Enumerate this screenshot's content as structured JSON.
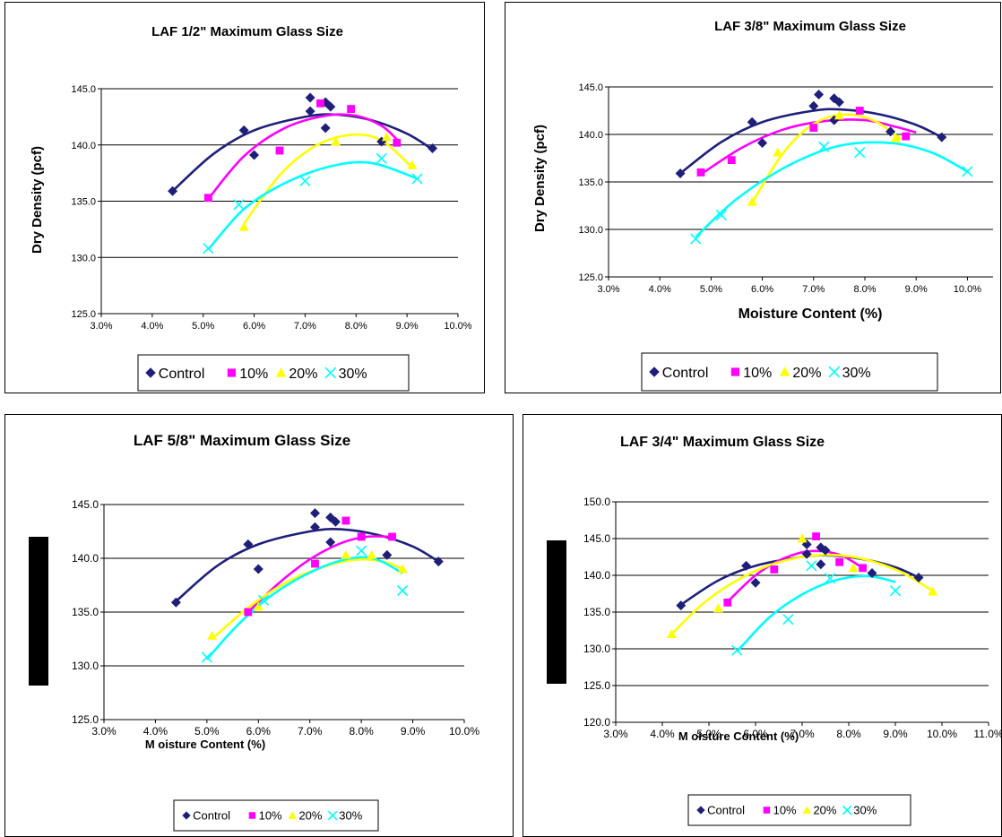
{
  "chart_data": [
    {
      "type": "scatter",
      "title": "LAF 1/2\" Maximum Glass Size",
      "xlabel": "",
      "ylabel": "Dry Density (pcf)",
      "xlim": [
        3.0,
        10.0
      ],
      "ylim": [
        125.0,
        145.0
      ],
      "xticks": [
        "3.0%",
        "4.0%",
        "5.0%",
        "6.0%",
        "7.0%",
        "8.0%",
        "9.0%",
        "10.0%"
      ],
      "yticks": [
        "125.0",
        "130.0",
        "135.0",
        "140.0",
        "145.0"
      ],
      "grid": "horizontal",
      "legend": "bottom",
      "series": [
        {
          "name": "Control",
          "color": "#1f1f7a",
          "marker": "diamond",
          "points": [
            [
              4.4,
              135.9
            ],
            [
              5.8,
              141.3
            ],
            [
              6.0,
              139.1
            ],
            [
              7.1,
              144.2
            ],
            [
              7.1,
              143.0
            ],
            [
              7.4,
              143.8
            ],
            [
              7.5,
              143.4
            ],
            [
              7.4,
              141.5
            ],
            [
              8.5,
              140.3
            ],
            [
              9.5,
              139.7
            ]
          ],
          "fit": [
            [
              4.4,
              135.9
            ],
            [
              5.2,
              139.2
            ],
            [
              6.0,
              141.3
            ],
            [
              7.0,
              142.5
            ],
            [
              7.6,
              142.7
            ],
            [
              8.3,
              142.2
            ],
            [
              9.0,
              141.0
            ],
            [
              9.5,
              139.6
            ]
          ]
        },
        {
          "name": "10%",
          "color": "#ff00ff",
          "marker": "square",
          "points": [
            [
              5.1,
              135.3
            ],
            [
              6.5,
              139.5
            ],
            [
              7.3,
              143.7
            ],
            [
              7.9,
              143.2
            ],
            [
              8.8,
              140.2
            ]
          ],
          "fit": [
            [
              5.1,
              135.2
            ],
            [
              5.8,
              139.0
            ],
            [
              6.6,
              141.5
            ],
            [
              7.4,
              142.6
            ],
            [
              8.0,
              142.6
            ],
            [
              8.5,
              141.7
            ],
            [
              8.8,
              140.5
            ]
          ]
        },
        {
          "name": "20%",
          "color": "#ffff00",
          "marker": "triangle",
          "points": [
            [
              5.8,
              132.7
            ],
            [
              7.6,
              140.3
            ],
            [
              8.6,
              140.7
            ],
            [
              9.1,
              138.2
            ]
          ],
          "fit": [
            [
              5.8,
              133.0
            ],
            [
              6.5,
              137.3
            ],
            [
              7.2,
              139.9
            ],
            [
              7.9,
              140.9
            ],
            [
              8.5,
              140.4
            ],
            [
              9.1,
              138.0
            ]
          ]
        },
        {
          "name": "30%",
          "color": "#00ffff",
          "marker": "x",
          "points": [
            [
              5.1,
              130.8
            ],
            [
              5.7,
              134.7
            ],
            [
              7.0,
              136.8
            ],
            [
              8.5,
              138.8
            ],
            [
              9.2,
              137.0
            ]
          ],
          "fit": [
            [
              5.1,
              130.7
            ],
            [
              5.8,
              134.3
            ],
            [
              6.6,
              136.6
            ],
            [
              7.5,
              138.1
            ],
            [
              8.3,
              138.4
            ],
            [
              9.2,
              137.0
            ]
          ]
        }
      ]
    },
    {
      "type": "scatter",
      "title": "LAF 3/8\" Maximum Glass Size",
      "xlabel": "Moisture Content (%)",
      "ylabel": "Dry Density (pcf)",
      "xlim": [
        3.0,
        10.5
      ],
      "ylim": [
        125.0,
        145.0
      ],
      "xticks": [
        "3.0%",
        "4.0%",
        "5.0%",
        "6.0%",
        "7.0%",
        "8.0%",
        "9.0%",
        "10.0%"
      ],
      "yticks": [
        "125.0",
        "130.0",
        "135.0",
        "140.0",
        "145.0"
      ],
      "grid": "horizontal",
      "legend": "bottom",
      "series": [
        {
          "name": "Control",
          "color": "#1f1f7a",
          "marker": "diamond",
          "points": [
            [
              4.4,
              135.9
            ],
            [
              5.8,
              141.3
            ],
            [
              6.0,
              139.1
            ],
            [
              7.1,
              144.2
            ],
            [
              7.0,
              143.0
            ],
            [
              7.4,
              143.8
            ],
            [
              7.5,
              143.4
            ],
            [
              7.4,
              141.5
            ],
            [
              8.5,
              140.3
            ],
            [
              9.5,
              139.7
            ]
          ],
          "fit": [
            [
              4.4,
              135.9
            ],
            [
              5.2,
              139.2
            ],
            [
              6.0,
              141.3
            ],
            [
              7.0,
              142.5
            ],
            [
              7.6,
              142.6
            ],
            [
              8.3,
              142.1
            ],
            [
              9.0,
              141.0
            ],
            [
              9.5,
              139.7
            ]
          ]
        },
        {
          "name": "10%",
          "color": "#ff00ff",
          "marker": "square",
          "points": [
            [
              4.8,
              136.0
            ],
            [
              5.4,
              137.3
            ],
            [
              7.0,
              140.7
            ],
            [
              7.9,
              142.5
            ],
            [
              8.8,
              139.8
            ]
          ],
          "fit": [
            [
              4.8,
              135.8
            ],
            [
              5.6,
              138.6
            ],
            [
              6.4,
              140.5
            ],
            [
              7.2,
              141.4
            ],
            [
              8.0,
              141.5
            ],
            [
              8.6,
              140.8
            ],
            [
              9.0,
              140.2
            ]
          ]
        },
        {
          "name": "20%",
          "color": "#ffff00",
          "marker": "triangle",
          "points": [
            [
              5.8,
              132.9
            ],
            [
              6.3,
              138.1
            ],
            [
              7.5,
              142.0
            ],
            [
              8.6,
              139.6
            ]
          ],
          "fit": [
            [
              5.8,
              132.8
            ],
            [
              6.4,
              138.0
            ],
            [
              7.0,
              141.1
            ],
            [
              7.6,
              142.1
            ],
            [
              8.2,
              141.4
            ],
            [
              8.7,
              139.5
            ]
          ]
        },
        {
          "name": "30%",
          "color": "#00ffff",
          "marker": "x",
          "points": [
            [
              4.7,
              129.0
            ],
            [
              5.2,
              131.5
            ],
            [
              7.2,
              138.7
            ],
            [
              7.9,
              138.1
            ],
            [
              10.0,
              136.1
            ]
          ],
          "fit": [
            [
              4.7,
              129.2
            ],
            [
              5.5,
              133.2
            ],
            [
              6.5,
              136.7
            ],
            [
              7.5,
              138.8
            ],
            [
              8.5,
              139.1
            ],
            [
              9.3,
              138.1
            ],
            [
              10.0,
              136.1
            ]
          ]
        }
      ]
    },
    {
      "type": "scatter",
      "title": "LAF 5/8\" Maximum Glass Size",
      "xlabel": "M oisture Content (%)",
      "ylabel": "",
      "xlim": [
        3.0,
        10.0
      ],
      "ylim": [
        125.0,
        145.0
      ],
      "xticks": [
        "3.0%",
        "4.0%",
        "5.0%",
        "6.0%",
        "7.0%",
        "8.0%",
        "9.0%",
        "10.0%"
      ],
      "yticks": [
        "125.0",
        "130.0",
        "135.0",
        "140.0",
        "145.0"
      ],
      "grid": "horizontal",
      "legend": "bottom",
      "series": [
        {
          "name": "Control",
          "color": "#1f1f7a",
          "marker": "diamond",
          "points": [
            [
              4.4,
              135.9
            ],
            [
              5.8,
              141.3
            ],
            [
              6.0,
              139.0
            ],
            [
              7.1,
              144.2
            ],
            [
              7.1,
              142.9
            ],
            [
              7.4,
              143.8
            ],
            [
              7.5,
              143.4
            ],
            [
              7.4,
              141.5
            ],
            [
              8.5,
              140.3
            ],
            [
              9.5,
              139.7
            ]
          ],
          "fit": [
            [
              4.4,
              136.0
            ],
            [
              5.2,
              139.3
            ],
            [
              6.0,
              141.3
            ],
            [
              7.0,
              142.5
            ],
            [
              7.6,
              142.7
            ],
            [
              8.3,
              142.2
            ],
            [
              9.0,
              141.1
            ],
            [
              9.5,
              139.7
            ]
          ]
        },
        {
          "name": "10%",
          "color": "#ff00ff",
          "marker": "square",
          "points": [
            [
              5.8,
              135.0
            ],
            [
              7.1,
              139.5
            ],
            [
              7.7,
              143.5
            ],
            [
              8.0,
              142.0
            ],
            [
              8.6,
              142.0
            ]
          ],
          "fit": [
            [
              5.8,
              135.0
            ],
            [
              6.4,
              137.7
            ],
            [
              7.0,
              139.9
            ],
            [
              7.6,
              141.4
            ],
            [
              8.1,
              142.0
            ],
            [
              8.6,
              142.0
            ]
          ]
        },
        {
          "name": "20%",
          "color": "#ffff00",
          "marker": "triangle",
          "points": [
            [
              5.1,
              132.8
            ],
            [
              6.0,
              135.5
            ],
            [
              7.7,
              140.3
            ],
            [
              8.2,
              140.3
            ],
            [
              8.8,
              139.0
            ]
          ],
          "fit": [
            [
              5.1,
              132.5
            ],
            [
              5.8,
              135.4
            ],
            [
              6.6,
              137.9
            ],
            [
              7.4,
              139.4
            ],
            [
              8.0,
              139.9
            ],
            [
              8.5,
              139.6
            ],
            [
              8.8,
              139.0
            ]
          ]
        },
        {
          "name": "30%",
          "color": "#00ffff",
          "marker": "x",
          "points": [
            [
              5.0,
              130.8
            ],
            [
              6.1,
              136.1
            ],
            [
              8.0,
              140.7
            ],
            [
              8.8,
              137.0
            ]
          ],
          "fit": [
            [
              5.0,
              130.6
            ],
            [
              5.6,
              133.8
            ],
            [
              6.3,
              136.7
            ],
            [
              7.1,
              138.9
            ],
            [
              7.8,
              140.0
            ],
            [
              8.3,
              139.9
            ],
            [
              8.8,
              138.6
            ]
          ]
        }
      ]
    },
    {
      "type": "scatter",
      "title": "LAF 3/4\" Maximum Glass Size",
      "xlabel": "M oisture Content (%)",
      "ylabel": "",
      "xlim": [
        3.0,
        11.0
      ],
      "ylim": [
        120.0,
        150.0
      ],
      "xticks": [
        "3.0%",
        "4.0%",
        "5.0%",
        "6.0%",
        "7.0%",
        "8.0%",
        "9.0%",
        "10.0%",
        "11.0%"
      ],
      "yticks": [
        "120.0",
        "125.0",
        "130.0",
        "135.0",
        "140.0",
        "145.0",
        "150.0"
      ],
      "grid": "horizontal",
      "legend": "bottom",
      "series": [
        {
          "name": "Control",
          "color": "#1f1f7a",
          "marker": "diamond",
          "points": [
            [
              4.4,
              135.9
            ],
            [
              5.8,
              141.3
            ],
            [
              6.0,
              139.0
            ],
            [
              7.1,
              144.2
            ],
            [
              7.1,
              142.9
            ],
            [
              7.4,
              143.8
            ],
            [
              7.5,
              143.4
            ],
            [
              7.4,
              141.5
            ],
            [
              8.5,
              140.3
            ],
            [
              9.5,
              139.7
            ]
          ],
          "fit": [
            [
              4.4,
              136.0
            ],
            [
              5.2,
              139.3
            ],
            [
              6.0,
              141.3
            ],
            [
              7.0,
              142.5
            ],
            [
              7.6,
              142.7
            ],
            [
              8.3,
              142.2
            ],
            [
              9.0,
              141.1
            ],
            [
              9.5,
              139.7
            ]
          ]
        },
        {
          "name": "10%",
          "color": "#ff00ff",
          "marker": "square",
          "points": [
            [
              5.4,
              136.3
            ],
            [
              6.4,
              140.8
            ],
            [
              7.3,
              145.3
            ],
            [
              7.8,
              141.8
            ],
            [
              8.3,
              141.0
            ]
          ],
          "fit": [
            [
              5.4,
              136.4
            ],
            [
              6.0,
              140.0
            ],
            [
              6.6,
              142.3
            ],
            [
              7.2,
              143.3
            ],
            [
              7.8,
              142.8
            ],
            [
              8.3,
              141.0
            ]
          ]
        },
        {
          "name": "20%",
          "color": "#ffff00",
          "marker": "triangle",
          "points": [
            [
              4.2,
              132.0
            ],
            [
              5.2,
              135.5
            ],
            [
              7.0,
              145.0
            ],
            [
              8.1,
              141.0
            ],
            [
              9.8,
              137.8
            ]
          ],
          "fit": [
            [
              4.2,
              132.0
            ],
            [
              5.0,
              136.8
            ],
            [
              6.0,
              140.6
            ],
            [
              7.0,
              142.5
            ],
            [
              8.0,
              142.6
            ],
            [
              9.0,
              140.8
            ],
            [
              9.8,
              137.9
            ]
          ]
        },
        {
          "name": "30%",
          "color": "#00ffff",
          "marker": "x",
          "points": [
            [
              5.6,
              129.8
            ],
            [
              6.7,
              134.0
            ],
            [
              7.2,
              141.3
            ],
            [
              7.6,
              139.6
            ],
            [
              9.0,
              137.9
            ]
          ],
          "fit": [
            [
              5.6,
              129.6
            ],
            [
              6.3,
              134.3
            ],
            [
              7.0,
              137.4
            ],
            [
              7.7,
              139.3
            ],
            [
              8.4,
              139.9
            ],
            [
              9.0,
              139.1
            ]
          ]
        }
      ]
    }
  ]
}
